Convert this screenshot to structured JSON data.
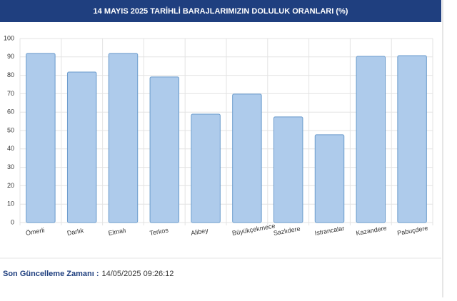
{
  "header": {
    "title": "14 MAYIS 2025 TARİHLİ BARAJLARIMIZIN DOLULUK ORANLARI (%)"
  },
  "chart_data": {
    "type": "bar",
    "categories": [
      "Ömerli",
      "Darlık",
      "Elmalı",
      "Terkos",
      "Alibey",
      "Büyükçekmece",
      "Sazlıdere",
      "Istrancalar",
      "Kazandere",
      "Pabuçdere"
    ],
    "values": [
      91.9,
      81.8,
      91.9,
      79.1,
      58.9,
      69.8,
      57.4,
      47.7,
      90.3,
      90.7
    ],
    "color": "#aecbeb",
    "ylim": [
      0,
      100
    ],
    "yticks": [
      0,
      10,
      20,
      30,
      40,
      50,
      60,
      70,
      80,
      90,
      100
    ],
    "grid": true
  },
  "footer": {
    "label": "Son Güncelleme Zamanı :",
    "timestamp": "14/05/2025 09:26:12"
  }
}
